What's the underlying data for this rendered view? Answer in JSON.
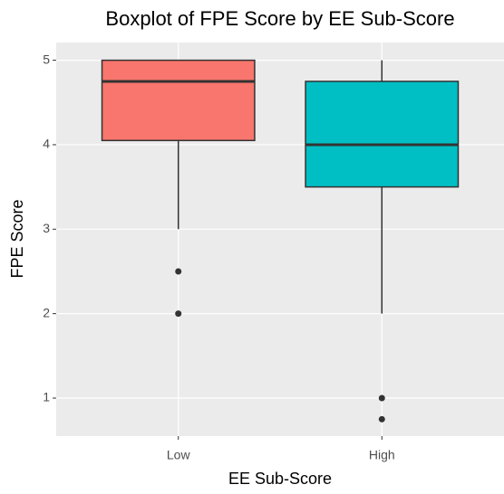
{
  "chart_data": {
    "type": "boxplot",
    "title": "Boxplot of FPE Score by EE Sub-Score",
    "x_label": "EE Sub-Score",
    "y_label": "FPE Score",
    "categories": [
      "Low",
      "High"
    ],
    "colors": [
      "#F8766D",
      "#00BFC4"
    ],
    "boxes": [
      {
        "min": 3,
        "q1": 4.05,
        "median": 4.75,
        "q3": 5,
        "max": 5,
        "outliers": [
          2.5,
          2
        ]
      },
      {
        "min": 2,
        "q1": 3.5,
        "median": 4,
        "q3": 4.75,
        "max": 5,
        "outliers": [
          1,
          0.75
        ]
      }
    ],
    "ylim": [
      0.55,
      5.21
    ],
    "yticks": [
      1,
      2,
      3,
      4,
      5
    ],
    "grid": true
  }
}
